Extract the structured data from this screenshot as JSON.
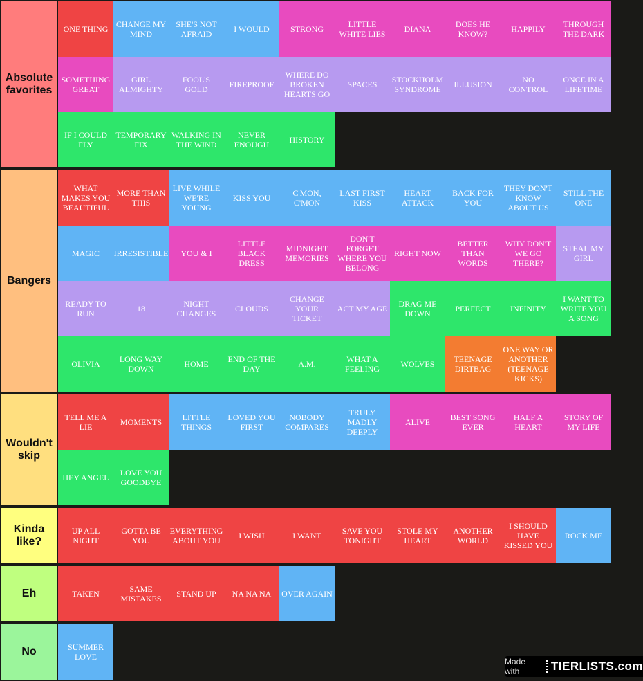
{
  "colors": {
    "red": "#ef4444",
    "blue": "#60b4f5",
    "pink": "#e84bbf",
    "purple": "#b79af0",
    "green": "#2ee66b",
    "orange": "#f37c31"
  },
  "tiers": [
    {
      "label": "Absolute favorites",
      "color": "#ff7c7c",
      "items": [
        {
          "text": "ONE THING",
          "color": "red"
        },
        {
          "text": "CHANGE MY MIND",
          "color": "blue"
        },
        {
          "text": "SHE'S NOT AFRAID",
          "color": "blue"
        },
        {
          "text": "I WOULD",
          "color": "blue"
        },
        {
          "text": "STRONG",
          "color": "pink"
        },
        {
          "text": "LITTLE WHITE LIES",
          "color": "pink"
        },
        {
          "text": "DIANA",
          "color": "pink"
        },
        {
          "text": "DOES HE KNOW?",
          "color": "pink"
        },
        {
          "text": "HAPPILY",
          "color": "pink"
        },
        {
          "text": "THROUGH THE DARK",
          "color": "pink"
        },
        {
          "text": "SOMETHING GREAT",
          "color": "pink"
        },
        {
          "text": "GIRL ALMIGHTY",
          "color": "purple"
        },
        {
          "text": "FOOL'S GOLD",
          "color": "purple"
        },
        {
          "text": "FIREPROOF",
          "color": "purple"
        },
        {
          "text": "WHERE DO BROKEN HEARTS GO",
          "color": "purple"
        },
        {
          "text": "SPACES",
          "color": "purple"
        },
        {
          "text": "STOCKHOLM SYNDROME",
          "color": "purple"
        },
        {
          "text": "ILLUSION",
          "color": "purple"
        },
        {
          "text": "NO CONTROL",
          "color": "purple"
        },
        {
          "text": "ONCE IN A LIFETIME",
          "color": "purple"
        },
        {
          "text": "IF I COULD FLY",
          "color": "green"
        },
        {
          "text": "TEMPORARY FIX",
          "color": "green"
        },
        {
          "text": "WALKING IN THE WIND",
          "color": "green"
        },
        {
          "text": "NEVER ENOUGH",
          "color": "green"
        },
        {
          "text": "HISTORY",
          "color": "green"
        }
      ]
    },
    {
      "label": "Bangers",
      "color": "#ffbf7f",
      "items": [
        {
          "text": "WHAT MAKES YOU BEAUTIFUL",
          "color": "red"
        },
        {
          "text": "MORE THAN THIS",
          "color": "red"
        },
        {
          "text": "LIVE WHILE WE'RE YOUNG",
          "color": "blue"
        },
        {
          "text": "KISS YOU",
          "color": "blue"
        },
        {
          "text": "C'MON, C'MON",
          "color": "blue"
        },
        {
          "text": "LAST FIRST KISS",
          "color": "blue"
        },
        {
          "text": "HEART ATTACK",
          "color": "blue"
        },
        {
          "text": "BACK FOR YOU",
          "color": "blue"
        },
        {
          "text": "THEY DON'T KNOW ABOUT US",
          "color": "blue"
        },
        {
          "text": "STILL THE ONE",
          "color": "blue"
        },
        {
          "text": "MAGIC",
          "color": "blue"
        },
        {
          "text": "IRRESISTIBLE",
          "color": "blue"
        },
        {
          "text": "YOU & I",
          "color": "pink"
        },
        {
          "text": "LITTLE BLACK DRESS",
          "color": "pink"
        },
        {
          "text": "MIDNIGHT MEMORIES",
          "color": "pink"
        },
        {
          "text": "DON'T FORGET WHERE YOU BELONG",
          "color": "pink"
        },
        {
          "text": "RIGHT NOW",
          "color": "pink"
        },
        {
          "text": "BETTER THAN WORDS",
          "color": "pink"
        },
        {
          "text": "WHY DON'T WE GO THERE?",
          "color": "pink"
        },
        {
          "text": "STEAL MY GIRL",
          "color": "purple"
        },
        {
          "text": "READY TO RUN",
          "color": "purple"
        },
        {
          "text": "18",
          "color": "purple"
        },
        {
          "text": "NIGHT CHANGES",
          "color": "purple"
        },
        {
          "text": "CLOUDS",
          "color": "purple"
        },
        {
          "text": "CHANGE YOUR TICKET",
          "color": "purple"
        },
        {
          "text": "ACT MY AGE",
          "color": "purple"
        },
        {
          "text": "DRAG ME DOWN",
          "color": "green"
        },
        {
          "text": "PERFECT",
          "color": "green"
        },
        {
          "text": "INFINITY",
          "color": "green"
        },
        {
          "text": "I WANT TO WRITE YOU A SONG",
          "color": "green"
        },
        {
          "text": "OLIVIA",
          "color": "green"
        },
        {
          "text": "LONG WAY DOWN",
          "color": "green"
        },
        {
          "text": "HOME",
          "color": "green"
        },
        {
          "text": "END OF THE DAY",
          "color": "green"
        },
        {
          "text": "A.M.",
          "color": "green"
        },
        {
          "text": "WHAT A FEELING",
          "color": "green"
        },
        {
          "text": "WOLVES",
          "color": "green"
        },
        {
          "text": "TEENAGE DIRTBAG",
          "color": "orange"
        },
        {
          "text": "ONE WAY OR ANOTHER (TEENAGE KICKS)",
          "color": "orange"
        }
      ]
    },
    {
      "label": "Wouldn't skip",
      "color": "#ffdf7f",
      "items": [
        {
          "text": "TELL ME A LIE",
          "color": "red"
        },
        {
          "text": "MOMENTS",
          "color": "red"
        },
        {
          "text": "LITTLE THINGS",
          "color": "blue"
        },
        {
          "text": "LOVED YOU FIRST",
          "color": "blue"
        },
        {
          "text": "NOBODY COMPARES",
          "color": "blue"
        },
        {
          "text": "TRULY MADLY DEEPLY",
          "color": "blue"
        },
        {
          "text": "ALIVE",
          "color": "pink"
        },
        {
          "text": "BEST SONG EVER",
          "color": "pink"
        },
        {
          "text": "HALF A HEART",
          "color": "pink"
        },
        {
          "text": "STORY OF MY LIFE",
          "color": "pink"
        },
        {
          "text": "HEY ANGEL",
          "color": "green"
        },
        {
          "text": "LOVE YOU GOODBYE",
          "color": "green"
        }
      ]
    },
    {
      "label": "Kinda like?",
      "color": "#ffff7f",
      "items": [
        {
          "text": "UP ALL NIGHT",
          "color": "red"
        },
        {
          "text": "GOTTA BE YOU",
          "color": "red"
        },
        {
          "text": "EVERYTHING ABOUT YOU",
          "color": "red"
        },
        {
          "text": "I WISH",
          "color": "red"
        },
        {
          "text": "I WANT",
          "color": "red"
        },
        {
          "text": "SAVE YOU TONIGHT",
          "color": "red"
        },
        {
          "text": "STOLE MY HEART",
          "color": "red"
        },
        {
          "text": "ANOTHER WORLD",
          "color": "red"
        },
        {
          "text": "I SHOULD HAVE KISSED YOU",
          "color": "red"
        },
        {
          "text": "ROCK ME",
          "color": "blue"
        }
      ]
    },
    {
      "label": "Eh",
      "color": "#bfff7f",
      "items": [
        {
          "text": "TAKEN",
          "color": "red"
        },
        {
          "text": "SAME MISTAKES",
          "color": "red"
        },
        {
          "text": "STAND UP",
          "color": "red"
        },
        {
          "text": "NA NA NA",
          "color": "red"
        },
        {
          "text": "OVER AGAIN",
          "color": "blue"
        }
      ]
    },
    {
      "label": "No",
      "color": "#9bf59b",
      "items": [
        {
          "text": "SUMMER LOVE",
          "color": "blue"
        }
      ]
    }
  ],
  "watermark": {
    "made_with": "Made with",
    "brand": "TIERLISTS.com"
  }
}
